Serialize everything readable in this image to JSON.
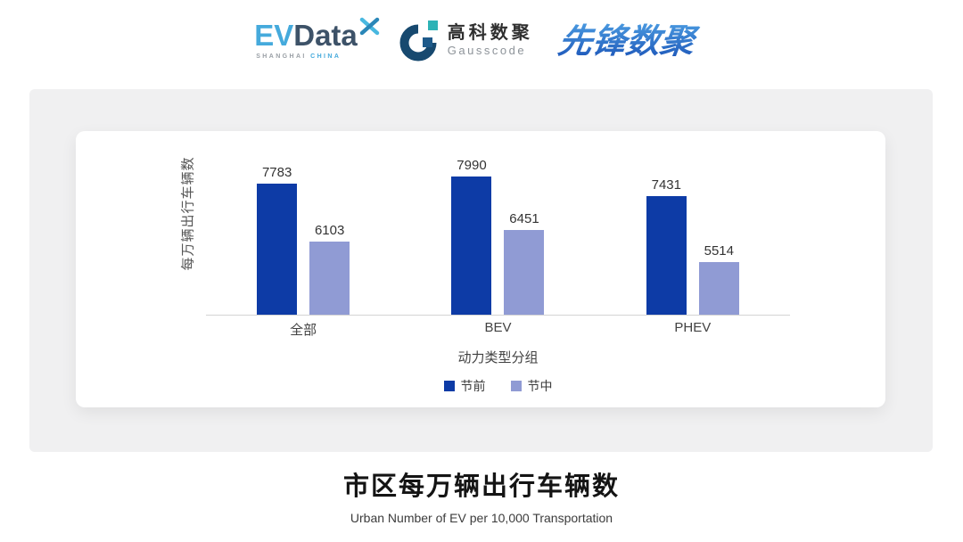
{
  "header": {
    "evdata": {
      "ev": "EV",
      "data": "Data",
      "tagline_left": "SHANGHAI",
      "tagline_right": "CHINA"
    },
    "gausscode": {
      "name_cn": "高科数聚",
      "name_en": "Gausscode"
    },
    "pioneer": "先锋数聚"
  },
  "chart_data": {
    "type": "bar",
    "categories": [
      "全部",
      "BEV",
      "PHEV"
    ],
    "series": [
      {
        "name": "节前",
        "color": "#0d3ba6",
        "values": [
          7783,
          7990,
          7431
        ]
      },
      {
        "name": "节中",
        "color": "#909bd4",
        "values": [
          6103,
          6451,
          5514
        ]
      }
    ],
    "xlabel": "动力类型分组",
    "ylabel": "每万辆出行车辆数",
    "ylim": [
      4000,
      8200
    ],
    "grid": false,
    "legend_position": "bottom",
    "bar_value_labels": true
  },
  "footer": {
    "title": "市区每万辆出行车辆数",
    "subtitle": "Urban Number of EV per 10,000 Transportation"
  },
  "colors": {
    "panel_bg": "#f0f0f1",
    "card_bg": "#ffffff",
    "axis_line": "#d4d4d4",
    "evdata_cyan": "#45aadc",
    "evdata_navy": "#3d5268",
    "gauss_blue": "#17496f",
    "gauss_teal": "#2eb3b6",
    "pioneer_blue_top": "#4a9ae0",
    "pioneer_blue_bottom": "#1c55b8"
  }
}
